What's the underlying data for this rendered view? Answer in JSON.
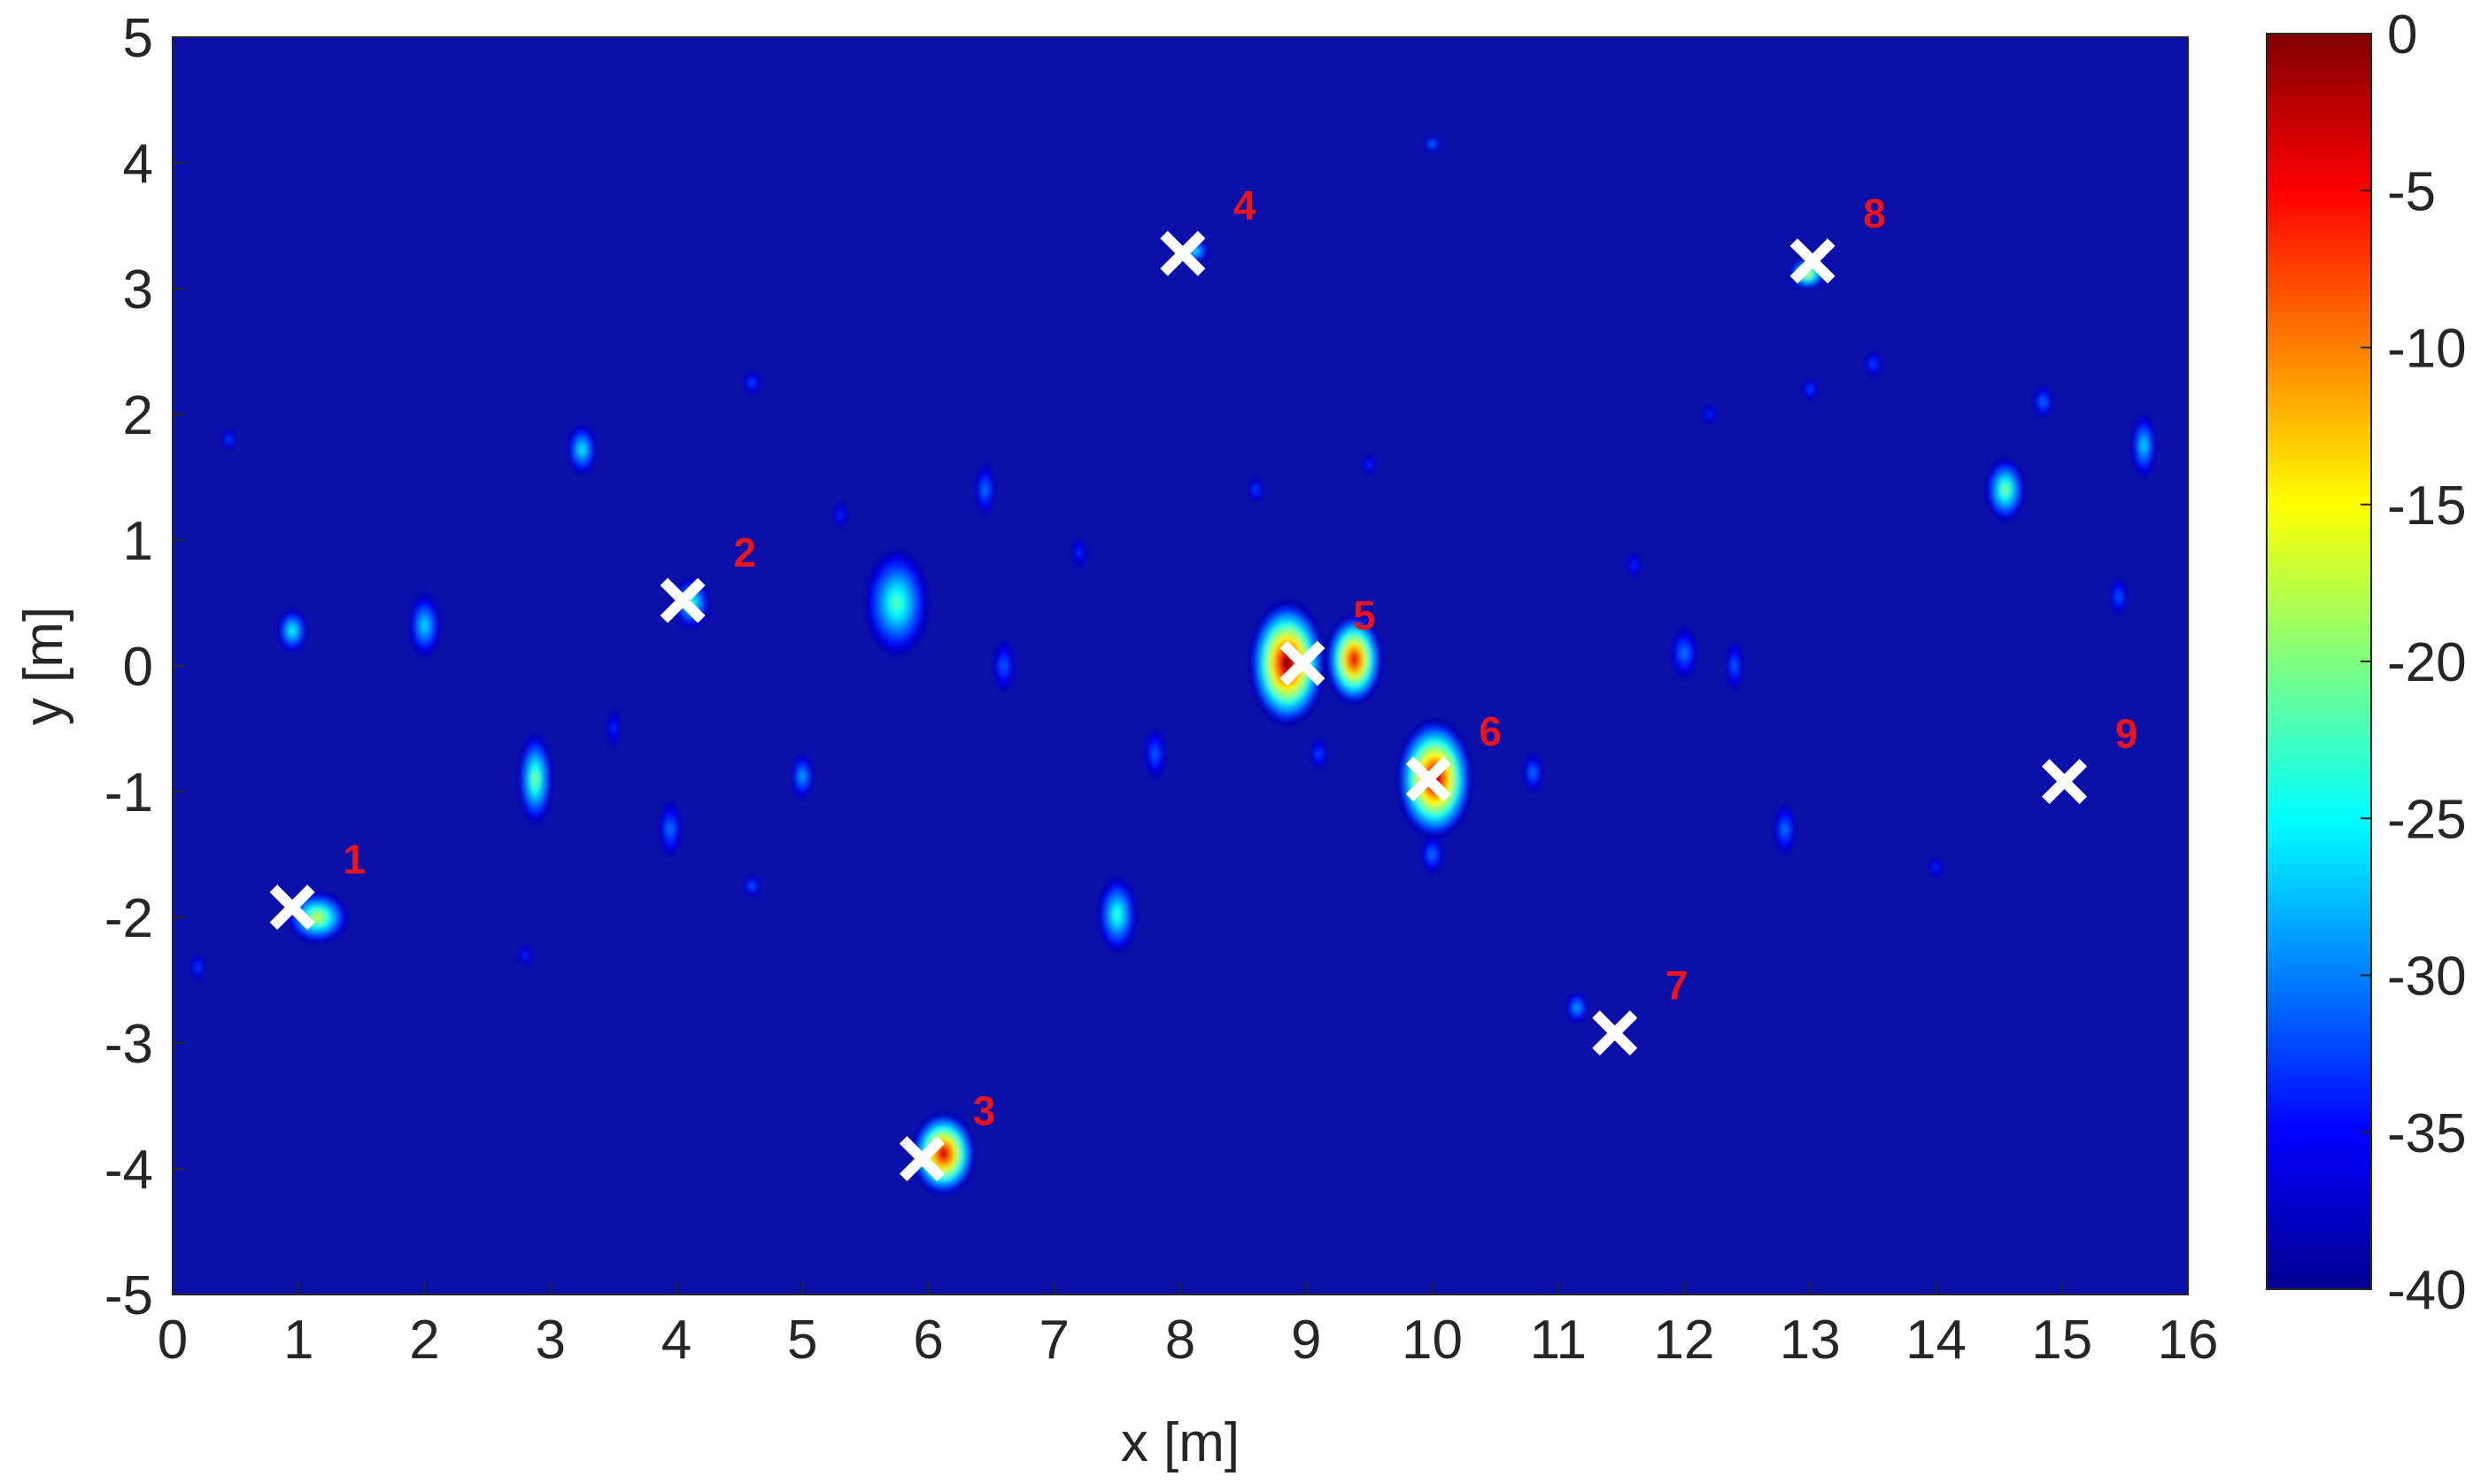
{
  "chart_data": {
    "type": "heatmap",
    "title": "",
    "xlabel": "x [m]",
    "ylabel": "y [m]",
    "xlim": [
      0,
      16
    ],
    "ylim": [
      -5,
      5
    ],
    "x_ticks": [
      "0",
      "1",
      "2",
      "3",
      "4",
      "5",
      "6",
      "7",
      "8",
      "9",
      "10",
      "11",
      "12",
      "13",
      "14",
      "15",
      "16"
    ],
    "y_ticks": [
      "5",
      "4",
      "3",
      "2",
      "1",
      "0",
      "-1",
      "-2",
      "-3",
      "-4",
      "-5"
    ],
    "colorbar": {
      "colormap": "jet",
      "range": [
        -40,
        0
      ],
      "ticks": [
        "0",
        "-5",
        "-10",
        "-15",
        "-20",
        "-25",
        "-30",
        "-35",
        "-40"
      ]
    },
    "background_color": "#0A10A8",
    "marker_color": "#ffffff",
    "label_color": "#E8141E",
    "targets": [
      {
        "label": "1",
        "x": 0.95,
        "y": -1.92
      },
      {
        "label": "2",
        "x": 4.05,
        "y": 0.52
      },
      {
        "label": "3",
        "x": 5.95,
        "y": -3.92
      },
      {
        "label": "4",
        "x": 8.02,
        "y": 3.28
      },
      {
        "label": "5",
        "x": 8.97,
        "y": 0.02
      },
      {
        "label": "6",
        "x": 9.97,
        "y": -0.9
      },
      {
        "label": "7",
        "x": 11.45,
        "y": -2.92
      },
      {
        "label": "8",
        "x": 13.02,
        "y": 3.22
      },
      {
        "label": "9",
        "x": 15.02,
        "y": -0.92
      }
    ],
    "blobs": [
      {
        "x": 8.85,
        "y": 0.02,
        "rx": 0.3,
        "ry": 0.5,
        "db": 0
      },
      {
        "x": 9.38,
        "y": 0.05,
        "rx": 0.22,
        "ry": 0.36,
        "db": -4
      },
      {
        "x": 10.02,
        "y": -0.9,
        "rx": 0.3,
        "ry": 0.48,
        "db": -1
      },
      {
        "x": 6.12,
        "y": -3.88,
        "rx": 0.25,
        "ry": 0.33,
        "db": -3
      },
      {
        "x": 1.15,
        "y": -2.0,
        "rx": 0.24,
        "ry": 0.2,
        "db": -17
      },
      {
        "x": 4.12,
        "y": 0.5,
        "rx": 0.14,
        "ry": 0.2,
        "db": -23
      },
      {
        "x": 12.98,
        "y": 3.12,
        "rx": 0.14,
        "ry": 0.12,
        "db": -16
      },
      {
        "x": 8.12,
        "y": 3.3,
        "rx": 0.1,
        "ry": 0.09,
        "db": -25
      },
      {
        "x": 5.75,
        "y": 0.5,
        "rx": 0.25,
        "ry": 0.42,
        "db": -22
      },
      {
        "x": 2.88,
        "y": -0.9,
        "rx": 0.13,
        "ry": 0.36,
        "db": -20
      },
      {
        "x": 7.5,
        "y": -1.98,
        "rx": 0.15,
        "ry": 0.3,
        "db": -23
      },
      {
        "x": 14.55,
        "y": 1.4,
        "rx": 0.15,
        "ry": 0.25,
        "db": -20
      },
      {
        "x": 0.95,
        "y": 0.28,
        "rx": 0.11,
        "ry": 0.17,
        "db": -24
      },
      {
        "x": 2.0,
        "y": 0.32,
        "rx": 0.12,
        "ry": 0.25,
        "db": -26
      },
      {
        "x": 3.25,
        "y": 1.72,
        "rx": 0.11,
        "ry": 0.2,
        "db": -25
      },
      {
        "x": 5.0,
        "y": -0.88,
        "rx": 0.08,
        "ry": 0.18,
        "db": -28
      },
      {
        "x": 3.95,
        "y": -1.3,
        "rx": 0.08,
        "ry": 0.22,
        "db": -30
      },
      {
        "x": 11.15,
        "y": -2.72,
        "rx": 0.08,
        "ry": 0.12,
        "db": -28
      },
      {
        "x": 15.65,
        "y": 1.75,
        "rx": 0.09,
        "ry": 0.25,
        "db": -26
      },
      {
        "x": 10.8,
        "y": -0.85,
        "rx": 0.07,
        "ry": 0.15,
        "db": -30
      },
      {
        "x": 6.45,
        "y": 1.4,
        "rx": 0.07,
        "ry": 0.2,
        "db": -30
      },
      {
        "x": 7.8,
        "y": -0.7,
        "rx": 0.08,
        "ry": 0.2,
        "db": -31
      },
      {
        "x": 12.0,
        "y": 0.1,
        "rx": 0.1,
        "ry": 0.2,
        "db": -30
      },
      {
        "x": 12.8,
        "y": -1.3,
        "rx": 0.08,
        "ry": 0.2,
        "db": -30
      },
      {
        "x": 6.6,
        "y": 0.0,
        "rx": 0.08,
        "ry": 0.2,
        "db": -31
      },
      {
        "x": 4.6,
        "y": 2.25,
        "rx": 0.06,
        "ry": 0.09,
        "db": -32
      },
      {
        "x": 10.0,
        "y": 4.15,
        "rx": 0.06,
        "ry": 0.06,
        "db": -30
      },
      {
        "x": 15.45,
        "y": 0.55,
        "rx": 0.06,
        "ry": 0.15,
        "db": -31
      },
      {
        "x": 14.85,
        "y": 2.1,
        "rx": 0.07,
        "ry": 0.12,
        "db": -30
      },
      {
        "x": 13.0,
        "y": 2.2,
        "rx": 0.06,
        "ry": 0.08,
        "db": -32
      },
      {
        "x": 4.6,
        "y": -1.75,
        "rx": 0.06,
        "ry": 0.08,
        "db": -31
      },
      {
        "x": 10.0,
        "y": -1.5,
        "rx": 0.08,
        "ry": 0.15,
        "db": -30
      },
      {
        "x": 8.6,
        "y": 1.4,
        "rx": 0.05,
        "ry": 0.1,
        "db": -32
      },
      {
        "x": 0.45,
        "y": 1.8,
        "rx": 0.05,
        "ry": 0.08,
        "db": -32
      },
      {
        "x": 12.4,
        "y": 0.0,
        "rx": 0.06,
        "ry": 0.2,
        "db": -31
      },
      {
        "x": 11.6,
        "y": 0.8,
        "rx": 0.05,
        "ry": 0.1,
        "db": -33
      },
      {
        "x": 5.3,
        "y": 1.2,
        "rx": 0.05,
        "ry": 0.1,
        "db": -33
      },
      {
        "x": 3.5,
        "y": -0.5,
        "rx": 0.05,
        "ry": 0.15,
        "db": -33
      },
      {
        "x": 13.5,
        "y": 2.4,
        "rx": 0.06,
        "ry": 0.1,
        "db": -32
      },
      {
        "x": 7.2,
        "y": 0.9,
        "rx": 0.05,
        "ry": 0.12,
        "db": -33
      },
      {
        "x": 9.5,
        "y": 1.6,
        "rx": 0.05,
        "ry": 0.08,
        "db": -33
      },
      {
        "x": 14.0,
        "y": -1.6,
        "rx": 0.05,
        "ry": 0.08,
        "db": -33
      },
      {
        "x": 2.8,
        "y": -2.3,
        "rx": 0.05,
        "ry": 0.08,
        "db": -33
      },
      {
        "x": 0.2,
        "y": -2.4,
        "rx": 0.05,
        "ry": 0.1,
        "db": -32
      },
      {
        "x": 12.2,
        "y": 2.0,
        "rx": 0.05,
        "ry": 0.08,
        "db": -33
      },
      {
        "x": 9.1,
        "y": -0.7,
        "rx": 0.06,
        "ry": 0.12,
        "db": -32
      }
    ]
  }
}
